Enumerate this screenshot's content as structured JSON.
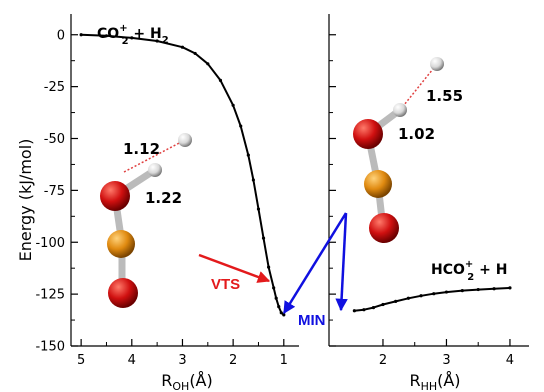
{
  "chart_data": {
    "type": "line",
    "title": "",
    "ylabel": "Energy (kJ/mol)",
    "ylim": [
      -150,
      10
    ],
    "yticks": [
      0,
      -25,
      -50,
      -75,
      -100,
      -125,
      -150
    ],
    "yticklabels": [
      "0",
      "-25",
      "-50",
      "-75",
      "-100",
      "-125",
      "-150"
    ],
    "panels": [
      {
        "xlabel_main": "R",
        "xlabel_sub": "OH",
        "xlabel_unit": "(Å)",
        "xlim": [
          5.2,
          0.7
        ],
        "xticks": [
          5,
          4,
          3,
          2,
          1
        ],
        "xticklabels": [
          "5",
          "4",
          "3",
          "2",
          "1"
        ],
        "series": [
          {
            "x": [
              5.0,
              4.5,
              4.0,
              3.5,
              3.0,
              2.75,
              2.5,
              2.25,
              2.0,
              1.85,
              1.7,
              1.6,
              1.5,
              1.4,
              1.3,
              1.2,
              1.15,
              1.1,
              1.05,
              1.0
            ],
            "y": [
              0,
              -0.5,
              -1.5,
              -3,
              -6,
              -9,
              -14,
              -22,
              -34,
              -44,
              -58,
              -70,
              -84,
              -98,
              -112,
              -122,
              -127,
              -131,
              -134,
              -135
            ]
          }
        ]
      },
      {
        "xlabel_main": "R",
        "xlabel_sub": "HH",
        "xlabel_unit": "(Å)",
        "xlim": [
          1.15,
          4.3
        ],
        "xticks": [
          2,
          3,
          4
        ],
        "xticklabels": [
          "2",
          "3",
          "4"
        ],
        "series": [
          {
            "x": [
              1.55,
              1.7,
              1.85,
              2.0,
              2.2,
              2.4,
              2.6,
              2.8,
              3.0,
              3.25,
              3.5,
              3.75,
              4.0
            ],
            "y": [
              -133,
              -132.5,
              -131.5,
              -130,
              -128.5,
              -127,
              -125.8,
              -124.8,
              -124,
              -123.3,
              -122.8,
              -122.4,
              -122
            ]
          }
        ]
      }
    ],
    "annotations": {
      "reactants_base": "CO",
      "reactants_charge": "+",
      "reactants_index": "2",
      "reactants_rest": " + H",
      "reactants_h_index": "2",
      "products_base": "HCO",
      "products_charge": "+",
      "products_index": "2",
      "products_rest": " + H",
      "vts_label": "VTS",
      "min_label": "MIN",
      "left_bond_hh": "1.12",
      "left_bond_oh": "1.22",
      "right_bond_hh": "1.55",
      "right_bond_oh": "1.02"
    },
    "colors": {
      "curve": "#000000",
      "vts_arrow": "#e31a1c",
      "min_arrow": "#1010e0",
      "oxygen": "#cc1010",
      "carbon": "#e08a10",
      "hydrogen": "#e8e8e8",
      "bond_partial": "#e04040"
    }
  }
}
